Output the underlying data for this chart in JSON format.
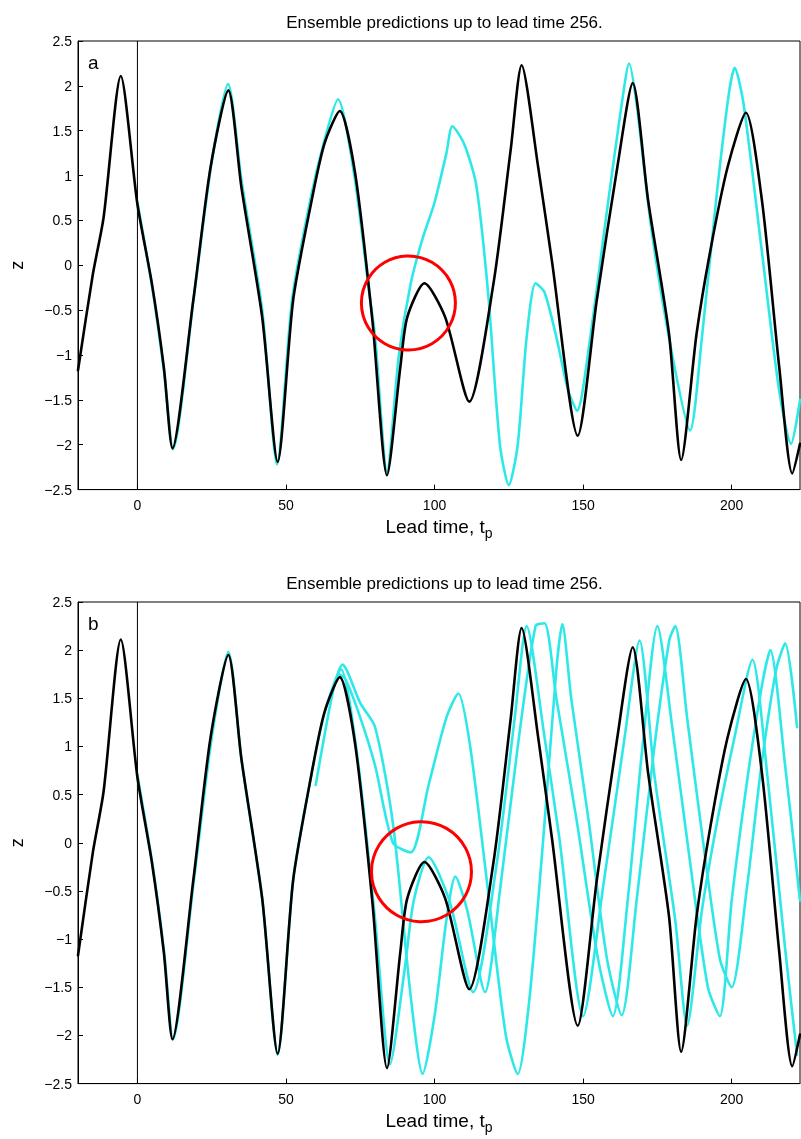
{
  "chart_data": [
    {
      "type": "line",
      "title": "Ensemble predictions up to lead time 256.",
      "xlabel": "Lead time, t$_{p}$",
      "ylabel": "z",
      "annotations": [
        "a"
      ],
      "xlim": [
        -20,
        223
      ],
      "ylim": [
        -2.5,
        2.5
      ],
      "xticks": [
        0,
        50,
        100,
        150,
        200
      ],
      "yticks": [
        -2.5,
        -2,
        -1.5,
        -1,
        -0.5,
        0,
        0.5,
        1,
        1.5,
        2,
        2.5
      ],
      "marker": "none",
      "ref_lines": [
        {
          "axis": "x",
          "value": 0,
          "color": "#000000"
        }
      ],
      "series": [
        {
          "color": "#2ee8e8",
          "x": [
            0,
            5,
            9,
            12,
            19,
            25,
            30.5,
            35,
            42,
            47,
            52,
            58,
            63,
            67.5,
            73,
            78,
            80,
            84,
            88,
            92,
            96,
            100,
            104,
            106,
            110,
            114,
            118,
            122,
            125,
            128,
            131,
            134,
            137,
            141,
            145,
            148,
            152,
            158,
            163,
            165.5,
            168,
            173,
            180,
            186,
            190,
            195,
            199,
            201,
            204,
            210,
            216,
            220,
            223
          ],
          "values": [
            0.7,
            -0.25,
            -1.2,
            -2.05,
            -0.35,
            1.15,
            2.02,
            0.95,
            -0.5,
            -2.22,
            -0.4,
            0.7,
            1.4,
            1.85,
            1.0,
            -0.3,
            -0.8,
            -2.3,
            -1.0,
            -0.2,
            0.3,
            0.7,
            1.25,
            1.55,
            1.35,
            0.9,
            -0.3,
            -2.0,
            -2.45,
            -2.0,
            -0.8,
            -0.2,
            -0.3,
            -0.8,
            -1.4,
            -1.62,
            -0.9,
            0.6,
            1.8,
            2.25,
            1.8,
            0.4,
            -1.0,
            -1.84,
            -0.8,
            0.8,
            1.9,
            2.2,
            1.8,
            0.2,
            -1.4,
            -1.99,
            -1.5
          ]
        },
        {
          "color": "#000000",
          "x": [
            -20,
            -15,
            -11.4,
            -5.6,
            0,
            4.9,
            8.9,
            11.8,
            18.8,
            24.6,
            30.6,
            35,
            42,
            47.2,
            52.4,
            58.2,
            62.9,
            68.1,
            73.3,
            79.1,
            84,
            88.5,
            90.8,
            96.6,
            103.6,
            111.7,
            119.8,
            125.6,
            129.3,
            134.9,
            139.5,
            148.2,
            154.6,
            161.5,
            166.7,
            171.9,
            178.9,
            183,
            188.2,
            192.8,
            198.6,
            204.8,
            210.2,
            216,
            220.4,
            223
          ],
          "values": [
            -1.17,
            -0.1,
            0.53,
            2.11,
            0.68,
            -0.21,
            -1.14,
            -2.04,
            -0.39,
            1.09,
            1.95,
            0.87,
            -0.58,
            -2.19,
            -0.39,
            0.65,
            1.35,
            1.72,
            1.02,
            -0.62,
            -2.34,
            -1.13,
            -0.58,
            -0.2,
            -0.58,
            -1.52,
            -0.21,
            1.28,
            2.23,
            1.09,
            0.05,
            -1.9,
            -0.39,
            1.09,
            2.03,
            0.72,
            -0.76,
            -2.17,
            -0.76,
            0.16,
            1.09,
            1.7,
            0.72,
            -1.13,
            -2.32,
            -1.99
          ]
        }
      ]
    },
    {
      "type": "line",
      "title": "Ensemble predictions up to lead time 256.",
      "xlabel": "Lead time, t$_{p}$",
      "ylabel": "z",
      "annotations": [
        "b"
      ],
      "xlim": [
        -20,
        223
      ],
      "ylim": [
        -2.5,
        2.5
      ],
      "xticks": [
        0,
        50,
        100,
        150,
        200
      ],
      "yticks": [
        -2.5,
        -2,
        -1.5,
        -1,
        -0.5,
        0,
        0.5,
        1,
        1.5,
        2,
        2.5
      ],
      "marker": "none",
      "ref_lines": [
        {
          "axis": "x",
          "value": 0,
          "color": "#000000"
        }
      ],
      "series": [
        {
          "color": "#2ee8e8",
          "x": [
            60,
            66,
            69,
            75,
            80,
            86,
            92,
            96,
            100,
            104,
            107,
            111,
            117,
            122,
            128,
            134,
            137,
            141,
            148,
            155,
            160,
            165,
            170,
            175,
            180,
            186,
            192,
            196,
            200,
            205,
            210,
            213,
            218,
            223
          ],
          "values": [
            0.6,
            1.6,
            1.85,
            1.45,
            1.2,
            0.2,
            -1.6,
            -2.4,
            -1.8,
            -0.8,
            -0.35,
            -0.7,
            -1.55,
            -0.5,
            1.0,
            2.25,
            2.28,
            1.5,
            0.2,
            -1.2,
            -1.8,
            -0.6,
            1.0,
            2.25,
            1.2,
            -0.2,
            -1.5,
            -1.8,
            -0.6,
            0.6,
            1.6,
            2.0,
            0.8,
            -0.6
          ]
        },
        {
          "color": "#2ee8e8",
          "x": [
            68,
            70,
            75,
            80,
            86,
            92,
            98,
            104,
            108,
            112,
            118,
            124,
            128,
            132,
            137,
            141,
            143,
            146,
            152,
            158,
            163,
            168,
            174,
            179,
            181,
            185,
            190,
            196,
            200,
            205,
            210,
            215,
            218,
            222
          ],
          "values": [
            1.75,
            1.7,
            1.3,
            0.8,
            0.0,
            -0.1,
            0.6,
            1.3,
            1.55,
            1.0,
            -0.5,
            -2.0,
            -2.4,
            -1.6,
            0.2,
            1.8,
            2.27,
            1.5,
            0.2,
            -1.2,
            -1.79,
            -0.6,
            1.0,
            2.1,
            2.25,
            1.3,
            0.1,
            -1.2,
            -1.5,
            -0.5,
            0.8,
            1.8,
            2.07,
            1.2
          ]
        },
        {
          "color": "#2ee8e8",
          "x": [
            0,
            5,
            9,
            12,
            19,
            25,
            30.6,
            35,
            42,
            47.2,
            52.4,
            58.2,
            63,
            68.5,
            74,
            80,
            85,
            90,
            93,
            98,
            105,
            113,
            121,
            127,
            131,
            137,
            142,
            150,
            157,
            164,
            169,
            174,
            181,
            185,
            190,
            195,
            201,
            207,
            212,
            218,
            222
          ],
          "values": [
            0.7,
            -0.21,
            -1.14,
            -2.04,
            -0.39,
            1.09,
            1.98,
            0.87,
            -0.58,
            -2.2,
            -0.39,
            0.65,
            1.35,
            1.8,
            0.9,
            -0.8,
            -2.3,
            -1.3,
            -0.6,
            -0.15,
            -0.6,
            -1.55,
            -0.2,
            1.3,
            2.25,
            1.1,
            0.05,
            -1.8,
            -0.4,
            1.1,
            2.1,
            0.7,
            -0.8,
            -1.9,
            -0.7,
            0.2,
            1.1,
            1.9,
            0.7,
            -1.1,
            -2.2
          ]
        },
        {
          "color": "#000000",
          "x": [
            -20,
            -15,
            -11.4,
            -5.6,
            0,
            4.9,
            8.9,
            11.8,
            18.8,
            24.6,
            30.6,
            35,
            42,
            47.2,
            52.4,
            58.2,
            62.9,
            68.1,
            73.3,
            79.1,
            84,
            88.5,
            90.8,
            96.6,
            103.6,
            111.7,
            119.8,
            125.6,
            129.3,
            134.9,
            139.5,
            148.2,
            154.6,
            161.5,
            166.7,
            171.9,
            178.9,
            183,
            188.2,
            192.8,
            198.6,
            204.8,
            210.2,
            216,
            220.4,
            223
          ],
          "values": [
            -1.17,
            -0.1,
            0.53,
            2.11,
            0.68,
            -0.21,
            -1.14,
            -2.04,
            -0.39,
            1.09,
            1.95,
            0.87,
            -0.58,
            -2.19,
            -0.39,
            0.65,
            1.35,
            1.72,
            1.02,
            -0.62,
            -2.34,
            -1.13,
            -0.58,
            -0.2,
            -0.58,
            -1.52,
            -0.21,
            1.28,
            2.23,
            1.09,
            0.05,
            -1.9,
            -0.39,
            1.09,
            2.03,
            0.72,
            -0.76,
            -2.17,
            -0.76,
            0.16,
            1.09,
            1.7,
            0.72,
            -1.13,
            -2.32,
            -1.99
          ]
        }
      ]
    }
  ]
}
